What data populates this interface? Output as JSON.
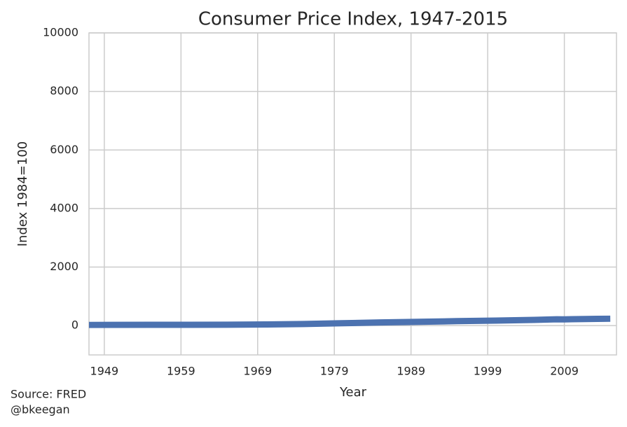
{
  "chart_data": {
    "type": "line",
    "title": "Consumer Price Index, 1947-2015",
    "x_label": "Year",
    "y_label": "Index 1984=100",
    "source": [
      "Source: FRED",
      "@bkeegan"
    ],
    "series": [
      {
        "name": "CPI",
        "color": "#4c72b0",
        "x": [
          1947,
          1950,
          1955,
          1960,
          1965,
          1970,
          1975,
          1980,
          1985,
          1990,
          1995,
          2000,
          2005,
          2008,
          2009,
          2010,
          2015
        ],
        "values": [
          22.3,
          24.1,
          26.8,
          29.6,
          31.5,
          38.8,
          53.8,
          82.4,
          107.6,
          130.7,
          152.4,
          172.2,
          195.3,
          215.3,
          214.5,
          218.1,
          237.0
        ]
      }
    ],
    "xlim": [
      1947,
      2015.8
    ],
    "xticks": [
      1949,
      1959,
      1969,
      1979,
      1989,
      1999,
      2009
    ],
    "ylim": [
      -1000,
      10000
    ],
    "yticks": [
      0,
      2000,
      4000,
      6000,
      8000,
      10000
    ],
    "grid": true
  }
}
